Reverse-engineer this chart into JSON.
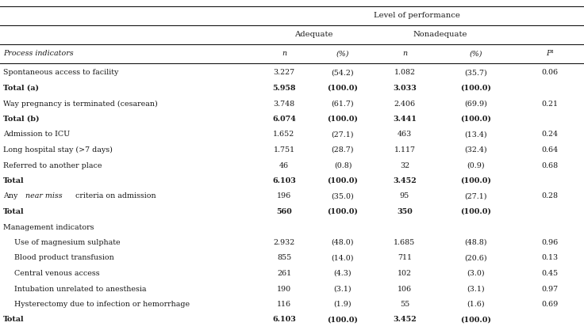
{
  "title": "Level of performance",
  "rows": [
    {
      "label": "Spontaneous access to facility",
      "adq_n": "3.227",
      "adq_pct": "(54.2)",
      "nadq_n": "1.082",
      "nadq_pct": "(35.7)",
      "p": "0.06",
      "bold": false,
      "indent": 0,
      "near_miss": false
    },
    {
      "label": "Total (a)",
      "adq_n": "5.958",
      "adq_pct": "(100.0)",
      "nadq_n": "3.033",
      "nadq_pct": "(100.0)",
      "p": "",
      "bold": true,
      "indent": 0,
      "near_miss": false
    },
    {
      "label": "Way pregnancy is terminated (cesarean)",
      "adq_n": "3.748",
      "adq_pct": "(61.7)",
      "nadq_n": "2.406",
      "nadq_pct": "(69.9)",
      "p": "0.21",
      "bold": false,
      "indent": 0,
      "near_miss": false
    },
    {
      "label": "Total (b)",
      "adq_n": "6.074",
      "adq_pct": "(100.0)",
      "nadq_n": "3.441",
      "nadq_pct": "(100.0)",
      "p": "",
      "bold": true,
      "indent": 0,
      "near_miss": false
    },
    {
      "label": "Admission to ICU",
      "adq_n": "1.652",
      "adq_pct": "(27.1)",
      "nadq_n": "463",
      "nadq_pct": "(13.4)",
      "p": "0.24",
      "bold": false,
      "indent": 0,
      "near_miss": false
    },
    {
      "label": "Long hospital stay (>7 days)",
      "adq_n": "1.751",
      "adq_pct": "(28.7)",
      "nadq_n": "1.117",
      "nadq_pct": "(32.4)",
      "p": "0.64",
      "bold": false,
      "indent": 0,
      "near_miss": false
    },
    {
      "label": "Referred to another place",
      "adq_n": "46",
      "adq_pct": "(0.8)",
      "nadq_n": "32",
      "nadq_pct": "(0.9)",
      "p": "0.68",
      "bold": false,
      "indent": 0,
      "near_miss": false
    },
    {
      "label": "Total",
      "adq_n": "6.103",
      "adq_pct": "(100.0)",
      "nadq_n": "3.452",
      "nadq_pct": "(100.0)",
      "p": "",
      "bold": true,
      "indent": 0,
      "near_miss": false
    },
    {
      "label": "Any near miss criteria on admission",
      "adq_n": "196",
      "adq_pct": "(35.0)",
      "nadq_n": "95",
      "nadq_pct": "(27.1)",
      "p": "0.28",
      "bold": false,
      "indent": 0,
      "near_miss": true
    },
    {
      "label": "Total",
      "adq_n": "560",
      "adq_pct": "(100.0)",
      "nadq_n": "350",
      "nadq_pct": "(100.0)",
      "p": "",
      "bold": true,
      "indent": 0,
      "near_miss": false
    },
    {
      "label": "Management indicators",
      "adq_n": "",
      "adq_pct": "",
      "nadq_n": "",
      "nadq_pct": "",
      "p": "",
      "bold": false,
      "indent": 0,
      "near_miss": false,
      "section": true
    },
    {
      "label": "Use of magnesium sulphate",
      "adq_n": "2.932",
      "adq_pct": "(48.0)",
      "nadq_n": "1.685",
      "nadq_pct": "(48.8)",
      "p": "0.96",
      "bold": false,
      "indent": 1,
      "near_miss": false
    },
    {
      "label": "Blood product transfusion",
      "adq_n": "855",
      "adq_pct": "(14.0)",
      "nadq_n": "711",
      "nadq_pct": "(20.6)",
      "p": "0.13",
      "bold": false,
      "indent": 1,
      "near_miss": false
    },
    {
      "label": "Central venous access",
      "adq_n": "261",
      "adq_pct": "(4.3)",
      "nadq_n": "102",
      "nadq_pct": "(3.0)",
      "p": "0.45",
      "bold": false,
      "indent": 1,
      "near_miss": false
    },
    {
      "label": "Intubation unrelated to anesthesia",
      "adq_n": "190",
      "adq_pct": "(3.1)",
      "nadq_n": "106",
      "nadq_pct": "(3.1)",
      "p": "0.97",
      "bold": false,
      "indent": 1,
      "near_miss": false
    },
    {
      "label": "Hysterectomy due to infection or hemorrhage",
      "adq_n": "116",
      "adq_pct": "(1.9)",
      "nadq_n": "55",
      "nadq_pct": "(1.6)",
      "p": "0.69",
      "bold": false,
      "indent": 1,
      "near_miss": false
    },
    {
      "label": "Total",
      "adq_n": "6.103",
      "adq_pct": "(100.0)",
      "nadq_n": "3.452",
      "nadq_pct": "(100.0)",
      "p": "",
      "bold": true,
      "indent": 0,
      "near_miss": false
    }
  ],
  "line_color": "#000000",
  "bg_color": "#ffffff",
  "text_color": "#1a1a1a",
  "font_size": 6.8,
  "header_font_size": 7.2
}
